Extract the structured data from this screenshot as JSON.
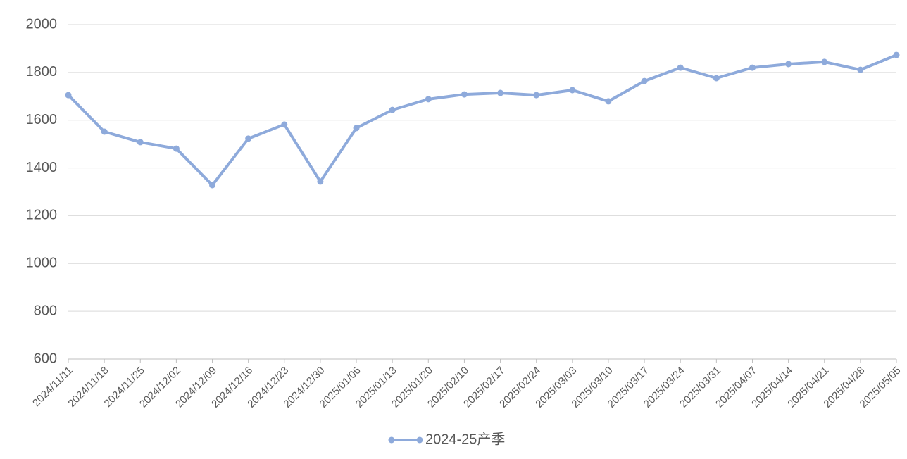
{
  "chart_data": {
    "type": "line",
    "categories": [
      "2024/11/11",
      "2024/11/18",
      "2024/11/25",
      "2024/12/02",
      "2024/12/09",
      "2024/12/16",
      "2024/12/23",
      "2024/12/30",
      "2025/01/06",
      "2025/01/13",
      "2025/01/20",
      "2025/02/10",
      "2025/02/17",
      "2025/02/24",
      "2025/03/03",
      "2025/03/10",
      "2025/03/17",
      "2025/03/24",
      "2025/03/31",
      "2025/04/07",
      "2025/04/14",
      "2025/04/21",
      "2025/04/28",
      "2025/05/05"
    ],
    "series": [
      {
        "name": "2024-25产季",
        "color": "#8eaadb",
        "values": [
          1705,
          1552,
          1508,
          1481,
          1328,
          1523,
          1582,
          1343,
          1567,
          1643,
          1688,
          1708,
          1714,
          1705,
          1726,
          1679,
          1764,
          1820,
          1776,
          1820,
          1835,
          1844,
          1811,
          1873
        ]
      }
    ],
    "ylim": [
      600,
      2000
    ],
    "yticks": [
      600,
      800,
      1000,
      1200,
      1400,
      1600,
      1800,
      2000
    ],
    "grid": true,
    "legend": "bottom"
  }
}
